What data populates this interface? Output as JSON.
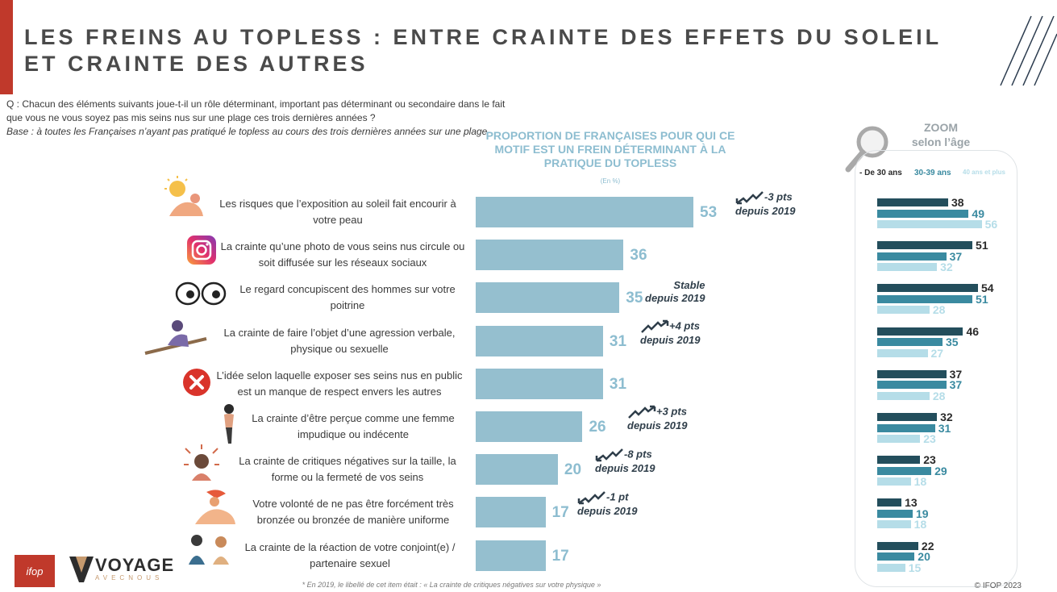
{
  "title_line1": "LES FREINS AU TOPLESS : ENTRE CRAINTE DES EFFETS DU SOLEIL",
  "title_line2": "ET CRAINTE DES AUTRES",
  "question": "Q : Chacun des éléments suivants joue-t-il un rôle déterminant, important pas déterminant ou secondaire dans le fait que vous ne vous soyez pas mis seins nus sur une plage ces trois dernières années ?",
  "base": "Base : à toutes les Françaises n’ayant pas pratiqué le topless au cours des trois dernières années sur une plage",
  "zoom": {
    "title_line1": "ZOOM",
    "title_line2": "selon l’âge"
  },
  "footnote": "* En 2019, le libellé de cet item était : « La crainte de critiques négatives sur votre physique »",
  "copyright": "© IFOP 2023",
  "logo_ifop": "ifop",
  "logo_voyage": "VOYAGE",
  "logo_voyage_sub": "AVECNOUS",
  "icons": [
    "sunbather-icon",
    "instagram-icon",
    "eyes-icon",
    "beach-person-icon",
    "red-x-icon",
    "woman-icon",
    "stressed-woman-icon",
    "sunbathing-woman-icon",
    "couple-icon",
    "magnifier-icon"
  ],
  "colors": {
    "main_bar": "#95bfcf",
    "age_under30": "#234e5c",
    "age_30_39": "#3a8aa0",
    "age_40_plus": "#b5dde8",
    "accent": "#c0392b"
  },
  "chart_data": [
    {
      "type": "bar",
      "orientation": "horizontal",
      "title": "PROPORTION DE FRANÇAISES POUR QUI CE MOTIF EST UN FREIN DÉTERMINANT À LA PRATIQUE DU TOPLESS",
      "subtitle": "(En %)",
      "categories": [
        "Les risques que l’exposition au soleil fait encourir à votre peau",
        "La crainte qu’une photo de vous seins nus circule ou soit diffusée sur les réseaux sociaux",
        "Le regard concupiscent des hommes sur votre poitrine",
        "La crainte de faire l’objet d’une agression verbale, physique ou sexuelle",
        "L’idée selon laquelle exposer ses seins nus en public est un manque de respect envers les autres",
        "La crainte d’être perçue comme une femme impudique ou indécente",
        "La crainte de critiques négatives sur la taille, la forme ou la fermeté de vos seins",
        "Votre volonté de ne pas être forcément très bronzée ou bronzée de manière uniforme",
        "La crainte de la réaction de votre conjoint(e) / partenaire sexuel"
      ],
      "values": [
        53,
        36,
        35,
        31,
        31,
        26,
        20,
        17,
        17
      ],
      "trends": [
        {
          "direction": "down",
          "label": "-3 pts",
          "since": "depuis 2019"
        },
        null,
        {
          "direction": "stable",
          "label": "Stable",
          "since": "depuis 2019"
        },
        {
          "direction": "up",
          "label": "+4 pts",
          "since": "depuis 2019"
        },
        null,
        {
          "direction": "up",
          "label": "+3 pts",
          "since": "depuis 2019"
        },
        {
          "direction": "down",
          "label": "-8 pts",
          "since": "depuis 2019"
        },
        {
          "direction": "down",
          "label": "-1 pt",
          "since": "depuis 2019"
        },
        null
      ]
    },
    {
      "type": "bar",
      "orientation": "horizontal",
      "title": "ZOOM selon l’âge",
      "legend": "top",
      "series": [
        {
          "name": "- De 30 ans",
          "values": [
            38,
            51,
            54,
            46,
            37,
            32,
            23,
            13,
            22
          ]
        },
        {
          "name": "30-39 ans",
          "values": [
            49,
            37,
            51,
            35,
            37,
            31,
            29,
            19,
            20
          ]
        },
        {
          "name": "40 ans et plus",
          "values": [
            56,
            32,
            28,
            27,
            28,
            23,
            18,
            18,
            15
          ]
        }
      ]
    }
  ]
}
